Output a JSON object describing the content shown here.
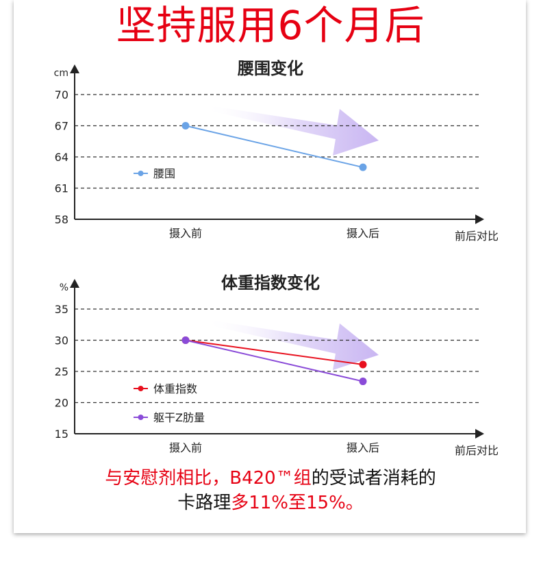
{
  "headline": "坚持服用6个月后",
  "colors": {
    "red": "#e60012",
    "waist_series": "#6aa3e6",
    "bmi_series": "#e8101e",
    "fat_series": "#8a4bd8",
    "arrow_tint": "#c9b6f2"
  },
  "chart_data": [
    {
      "type": "line",
      "title": "腰围变化",
      "ylabel": "cm",
      "xlabel": "前后对比",
      "categories": [
        "摄入前",
        "摄入后"
      ],
      "ylim": [
        58,
        70
      ],
      "yticks": [
        70,
        67,
        64,
        61,
        58
      ],
      "grid": true,
      "legend": "left",
      "series": [
        {
          "name": "腰围",
          "color": "#6aa3e6",
          "values": [
            67,
            63
          ]
        }
      ]
    },
    {
      "type": "line",
      "title": "体重指数变化",
      "ylabel": "%",
      "xlabel": "前后对比",
      "categories": [
        "摄入前",
        "摄入后"
      ],
      "ylim": [
        15,
        35
      ],
      "yticks": [
        35,
        30,
        25,
        20,
        15
      ],
      "grid": true,
      "legend": "left",
      "series": [
        {
          "name": "体重指数",
          "color": "#e8101e",
          "values": [
            30,
            26.1
          ]
        },
        {
          "name": "躯干Z肪量",
          "color": "#8a4bd8",
          "values": [
            30,
            23.4
          ]
        }
      ]
    }
  ],
  "footer": {
    "line1_red": "与安慰剂相比，B420™组",
    "line1_black": "的受试者消耗的",
    "line2_black": "卡路理",
    "line2_red": "多11%至15%。"
  }
}
